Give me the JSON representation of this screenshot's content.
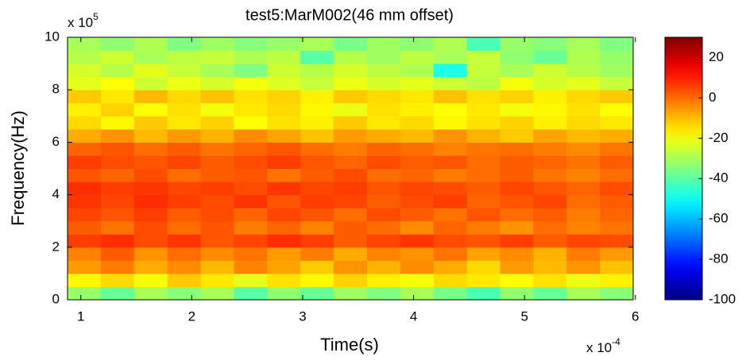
{
  "chart_data": {
    "type": "heatmap",
    "title": "test5:MarM002(46 mm offset)",
    "xlabel": "Time(s)",
    "ylabel": "Frequency(Hz)",
    "x_multiplier": {
      "base": "x 10",
      "exp": "-4"
    },
    "y_multiplier": {
      "base": "x 10",
      "exp": "5"
    },
    "colormap": "jet",
    "x": [
      1.03,
      1.33,
      1.63,
      1.93,
      2.23,
      2.53,
      2.83,
      3.13,
      3.43,
      3.73,
      4.03,
      4.33,
      4.63,
      4.93,
      5.23,
      5.53,
      5.83
    ],
    "y": [
      0.25,
      0.75,
      1.25,
      1.75,
      2.25,
      2.75,
      3.25,
      3.75,
      4.25,
      4.75,
      5.25,
      5.75,
      6.25,
      6.75,
      7.25,
      7.75,
      8.25,
      8.75,
      9.25,
      9.75
    ],
    "values": [
      [
        -32,
        -38,
        -30,
        -34,
        -30,
        -40,
        -33,
        -38,
        -31,
        -35,
        -30,
        -36,
        -42,
        -33,
        -38,
        -30,
        -34
      ],
      [
        -18,
        -14,
        -20,
        -12,
        -16,
        -22,
        -15,
        -18,
        -13,
        -17,
        -20,
        -14,
        -16,
        -19,
        -15,
        -21,
        -17
      ],
      [
        -6,
        -2,
        -8,
        -4,
        -10,
        -3,
        -7,
        -12,
        -5,
        -9,
        -4,
        -8,
        -14,
        -6,
        -10,
        -5,
        -11
      ],
      [
        -3,
        2,
        -5,
        0,
        -4,
        -1,
        -6,
        -2,
        -8,
        -3,
        -5,
        -1,
        -7,
        -4,
        -9,
        -2,
        -6
      ],
      [
        6,
        8,
        4,
        7,
        3,
        5,
        8,
        6,
        2,
        5,
        7,
        4,
        3,
        6,
        2,
        5,
        4
      ],
      [
        2,
        -1,
        4,
        0,
        3,
        -2,
        1,
        -3,
        2,
        0,
        -4,
        1,
        -2,
        -5,
        0,
        -3,
        -1
      ],
      [
        5,
        3,
        6,
        2,
        4,
        1,
        5,
        3,
        0,
        4,
        2,
        -1,
        3,
        0,
        2,
        -2,
        1
      ],
      [
        7,
        5,
        8,
        6,
        4,
        7,
        3,
        6,
        5,
        2,
        4,
        6,
        1,
        3,
        5,
        0,
        2
      ],
      [
        8,
        6,
        7,
        5,
        6,
        4,
        7,
        5,
        6,
        3,
        5,
        4,
        2,
        5,
        3,
        1,
        4
      ],
      [
        3,
        1,
        4,
        0,
        2,
        3,
        -1,
        2,
        4,
        0,
        1,
        -2,
        0,
        2,
        -1,
        -3,
        0
      ],
      [
        6,
        4,
        3,
        5,
        2,
        4,
        6,
        3,
        1,
        4,
        2,
        3,
        0,
        2,
        1,
        -1,
        2
      ],
      [
        1,
        3,
        0,
        2,
        -1,
        1,
        3,
        0,
        -2,
        1,
        0,
        -3,
        -1,
        0,
        -2,
        -4,
        -1
      ],
      [
        -8,
        -5,
        -10,
        -6,
        -9,
        -4,
        -7,
        -11,
        -6,
        -8,
        -10,
        -5,
        -9,
        -12,
        -7,
        -10,
        -8
      ],
      [
        -14,
        -18,
        -12,
        -16,
        -13,
        -19,
        -15,
        -17,
        -12,
        -16,
        -14,
        -18,
        -15,
        -13,
        -17,
        -14,
        -16
      ],
      [
        -17,
        -13,
        -19,
        -15,
        -20,
        -16,
        -14,
        -18,
        -21,
        -15,
        -17,
        -19,
        -16,
        -20,
        -18,
        -15,
        -19
      ],
      [
        -12,
        -16,
        -10,
        -14,
        -11,
        -15,
        -13,
        -17,
        -12,
        -14,
        -16,
        -11,
        -15,
        -13,
        -17,
        -14,
        -12
      ],
      [
        -22,
        -19,
        -25,
        -21,
        -24,
        -20,
        -23,
        -26,
        -21,
        -24,
        -22,
        -25,
        -27,
        -20,
        -24,
        -22,
        -26
      ],
      [
        -24,
        -28,
        -22,
        -26,
        -30,
        -35,
        -25,
        -28,
        -24,
        -27,
        -29,
        -48,
        -26,
        -30,
        -25,
        -28,
        -31
      ],
      [
        -28,
        -25,
        -30,
        -27,
        -26,
        -29,
        -27,
        -40,
        -28,
        -31,
        -27,
        -30,
        -26,
        -33,
        -38,
        -29,
        -32
      ],
      [
        -30,
        -33,
        -29,
        -35,
        -31,
        -34,
        -32,
        -30,
        -36,
        -31,
        -33,
        -29,
        -42,
        -32,
        -34,
        -30,
        -35
      ]
    ],
    "xlim": [
      0.88,
      5.98
    ],
    "ylim": [
      0,
      10
    ],
    "xticks": [
      1,
      2,
      3,
      4,
      5,
      6
    ],
    "yticks": [
      0,
      2,
      4,
      6,
      8,
      10
    ],
    "clim": [
      -100,
      30
    ],
    "cticks": [
      -100,
      -80,
      -60,
      -40,
      -20,
      0,
      20
    ]
  }
}
